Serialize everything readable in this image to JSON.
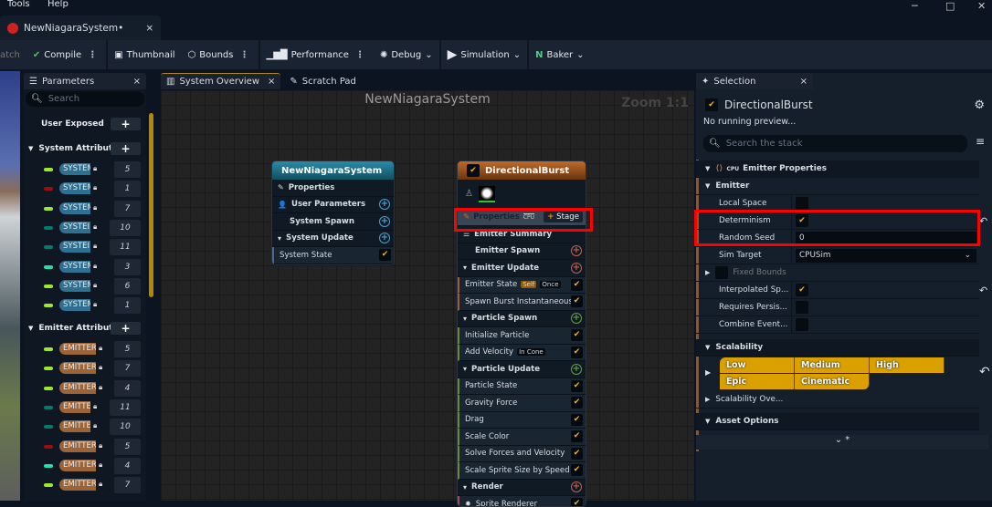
{
  "menu": {
    "items": [
      "Tools",
      "Help"
    ]
  },
  "window": {
    "minimize": "─",
    "maximize": "□",
    "close": "✕"
  },
  "doc_tab": {
    "title": "NewNiagaraSystem•",
    "close": "×"
  },
  "toolbar": {
    "partial": "atch",
    "compile": "Compile",
    "thumbnail": "Thumbnail",
    "bounds": "Bounds",
    "performance": "Performance",
    "debug": "Debug",
    "simulation": "Simulation",
    "baker": "Baker",
    "chevron": "⌄"
  },
  "params": {
    "tab": "Parameters",
    "close": "×",
    "search_placeholder": "Search",
    "user_exposed": "User Exposed",
    "system_attributes": "System Attributes",
    "emitter_attributes": "Emitter Attributes",
    "system_rows": [
      {
        "label": "SYSTEM",
        "count": "5",
        "color": "#9be82e"
      },
      {
        "label": "SYSTEM",
        "count": "1",
        "color": "#a00b0b"
      },
      {
        "label": "SYSTEM",
        "count": "7",
        "color": "#9be82e"
      },
      {
        "label": "SYSTEI",
        "count": "10",
        "color": "#057a6e"
      },
      {
        "label": "SYSTEI",
        "count": "11",
        "color": "#057a6e"
      },
      {
        "label": "SYSTEM",
        "count": "3",
        "color": "#1ee0b0"
      },
      {
        "label": "SYSTEM",
        "count": "6",
        "color": "#9be82e"
      },
      {
        "label": "SYSTEM",
        "count": "1",
        "color": "#9be82e"
      }
    ],
    "emitter_rows": [
      {
        "label": "EMITTER",
        "count": "5",
        "color": "#9be82e"
      },
      {
        "label": "EMITTER",
        "count": "7",
        "color": "#9be82e"
      },
      {
        "label": "EMITTER",
        "count": "4",
        "color": "#9be82e"
      },
      {
        "label": "EMITTE",
        "count": "11",
        "color": "#057a6e"
      },
      {
        "label": "EMITTE",
        "count": "10",
        "color": "#057a6e"
      },
      {
        "label": "EMITTER",
        "count": "5",
        "color": "#a00b0b"
      },
      {
        "label": "EMITTER",
        "count": "4",
        "color": "#1ee0b0"
      },
      {
        "label": "EMITTER",
        "count": "7",
        "color": "#9be82e"
      }
    ]
  },
  "graph": {
    "tab_overview": "System Overview",
    "tab_close": "×",
    "tab_scratch": "Scratch Pad",
    "title": "NewNiagaraSystem",
    "zoom": "Zoom 1:1",
    "system_node": {
      "title": "NewNiagaraSystem",
      "rows": [
        {
          "label": "Properties",
          "kind": "b",
          "icon": "✎"
        },
        {
          "label": "User Parameters",
          "kind": "b",
          "icon": "👤",
          "add": "#4aa0d0"
        },
        {
          "label": "System Spawn",
          "kind": "b",
          "add": "#4aa0d0"
        },
        {
          "label": "System Update",
          "kind": "b",
          "icon": "▾",
          "add": "#4aa0d0"
        },
        {
          "label": "System State",
          "kind": "m",
          "check": true,
          "edge": "#4a6a8a"
        }
      ]
    },
    "emitter_node": {
      "title": "DirectionalBurst",
      "properties": "Properties",
      "cpu": "CPU",
      "stage": "Stage",
      "rows": [
        {
          "label": "Emitter Summary",
          "kind": "b",
          "icon": "☰"
        },
        {
          "label": "Emitter Spawn",
          "kind": "b",
          "add": "#c06050"
        },
        {
          "label": "Emitter Update",
          "kind": "b",
          "icon": "▾",
          "add": "#c06050"
        },
        {
          "label": "Emitter State",
          "kind": "m",
          "check": true,
          "edge": "#a05a40",
          "badges": [
            "Self",
            "Once"
          ]
        },
        {
          "label": "Spawn Burst Instantaneous",
          "kind": "m",
          "check": true,
          "edge": "#a05a40"
        },
        {
          "label": "Particle Spawn",
          "kind": "b",
          "icon": "▾",
          "add": "#60a040"
        },
        {
          "label": "Initialize Particle",
          "kind": "m",
          "check": true,
          "edge": "#6a8a3a"
        },
        {
          "label": "Add Velocity",
          "kind": "m",
          "check": true,
          "edge": "#6a8a3a",
          "badges": [
            "In Cone"
          ]
        },
        {
          "label": "Particle Update",
          "kind": "b",
          "icon": "▾",
          "add": "#60a040"
        },
        {
          "label": "Particle State",
          "kind": "m",
          "check": true,
          "edge": "#6a8a3a"
        },
        {
          "label": "Gravity Force",
          "kind": "m",
          "check": true,
          "edge": "#6a8a3a"
        },
        {
          "label": "Drag",
          "kind": "m",
          "check": true,
          "edge": "#6a8a3a"
        },
        {
          "label": "Scale Color",
          "kind": "m",
          "check": true,
          "edge": "#6a8a3a"
        },
        {
          "label": "Solve Forces and Velocity",
          "kind": "m",
          "check": true,
          "edge": "#6a8a3a"
        },
        {
          "label": "Scale Sprite Size by Speed",
          "kind": "m",
          "check": true,
          "edge": "#6a8a3a"
        },
        {
          "label": "Render",
          "kind": "b",
          "icon": "▾",
          "add": "#c06050"
        },
        {
          "label": "Sprite Renderer",
          "kind": "m",
          "check": true,
          "edge": "#a05060",
          "icon": "✹"
        }
      ]
    }
  },
  "selection": {
    "tab": "Selection",
    "close": "×",
    "emitter_name": "DirectionalBurst",
    "status": "No running preview...",
    "search_placeholder": "Search the stack",
    "emitter_properties": "Emitter Properties",
    "cpu": "CPU",
    "emitter_section": "Emitter",
    "local_space": "Local Space",
    "determinism": "Determinism",
    "random_seed": "Random Seed",
    "random_seed_value": "0",
    "sim_target": "Sim Target",
    "sim_target_value": "CPUSim",
    "fixed_bounds": "Fixed Bounds",
    "interpolated": "Interpolated Sp...",
    "requires": "Requires Persis...",
    "combine": "Combine Event...",
    "local_space_checked": false,
    "determinism_checked": true,
    "interpolated_checked": true,
    "requires_checked": false,
    "combine_checked": false,
    "scalability": "Scalability",
    "levels": [
      "Low",
      "Medium",
      "High",
      "Epic",
      "Cinematic"
    ],
    "scalability_overrides": "Scalability Ove...",
    "asset_options": "Asset Options",
    "more": "⌄ *",
    "accent": "#d9a000"
  }
}
